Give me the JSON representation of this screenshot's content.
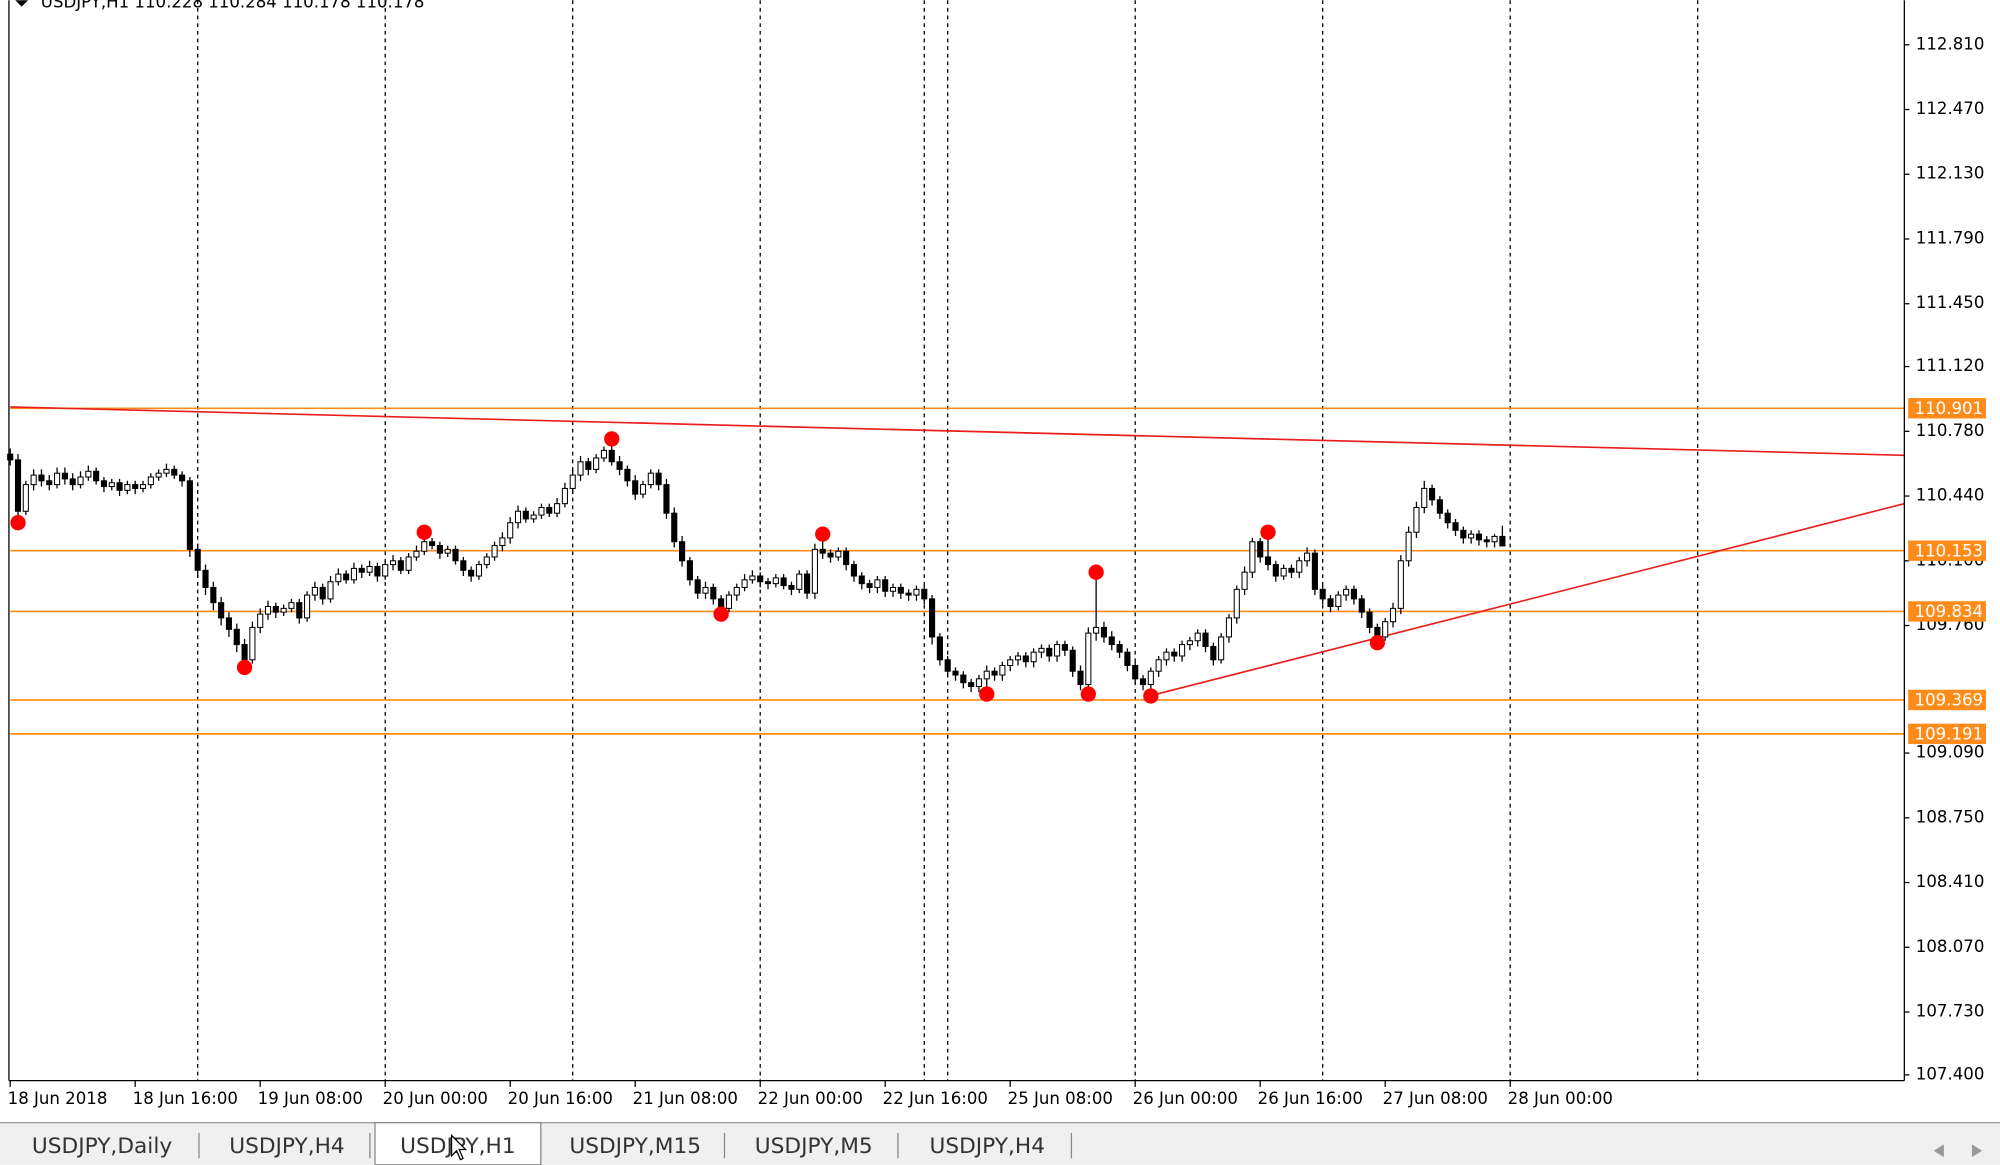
{
  "ui": {
    "header": "USDJPY,H1  110.228 110.284 110.178 110.178",
    "tabs": [
      "USDJPY,Daily",
      "USDJPY,H4",
      "USDJPY,H1",
      "USDJPY,M15",
      "USDJPY,M5",
      "USDJPY,H4"
    ],
    "active_tab": 2
  },
  "chart_data": {
    "type": "candlestick",
    "xlim": [
      0,
      242.45
    ],
    "ylim": [
      107.37,
      113.044
    ],
    "xticks": [
      {
        "value": 0,
        "label": "18 Jun 2018"
      },
      {
        "value": 16,
        "label": "18 Jun 16:00"
      },
      {
        "value": 32,
        "label": "19 Jun 08:00"
      },
      {
        "value": 48,
        "label": "20 Jun 00:00"
      },
      {
        "value": 64,
        "label": "20 Jun 16:00"
      },
      {
        "value": 80,
        "label": "21 Jun 08:00"
      },
      {
        "value": 96,
        "label": "22 Jun 00:00"
      },
      {
        "value": 112,
        "label": "22 Jun 16:00"
      },
      {
        "value": 128,
        "label": "25 Jun 08:00"
      },
      {
        "value": 144,
        "label": "26 Jun 00:00"
      },
      {
        "value": 160,
        "label": "26 Jun 16:00"
      },
      {
        "value": 176,
        "label": "27 Jun 08:00"
      },
      {
        "value": 192,
        "label": "28 Jun 00:00"
      }
    ],
    "yticks": [
      112.81,
      112.47,
      112.13,
      111.79,
      111.45,
      111.12,
      110.78,
      110.44,
      110.1,
      109.76,
      109.09,
      108.75,
      108.41,
      108.07,
      107.73,
      107.4
    ],
    "ytick_labels": [
      "112.810",
      "112.470",
      "112.130",
      "111.790",
      "111.450",
      "111.120",
      "110.780",
      "110.440",
      "110.100",
      "109.760",
      "109.090",
      "108.750",
      "108.410",
      "108.070",
      "107.730",
      "107.400"
    ],
    "separators": [
      24,
      48,
      72,
      96,
      117,
      120,
      144,
      168,
      192,
      216
    ],
    "levels": [
      110.901,
      110.153,
      109.834,
      109.369,
      109.191
    ],
    "level_color": "#ff8c1a",
    "trendlines": [
      {
        "x": [
          0,
          242.45
        ],
        "y": [
          110.908,
          110.654
        ]
      },
      {
        "x": [
          146.4,
          242.45
        ],
        "y": [
          109.396,
          110.4
        ]
      }
    ],
    "trend_color": "#e8201c",
    "fractals": [
      {
        "x": 1,
        "y": 110.3
      },
      {
        "x": 30,
        "y": 109.54
      },
      {
        "x": 53,
        "y": 110.25
      },
      {
        "x": 77,
        "y": 110.74
      },
      {
        "x": 91,
        "y": 109.82
      },
      {
        "x": 104,
        "y": 110.24
      },
      {
        "x": 125,
        "y": 109.4
      },
      {
        "x": 138,
        "y": 109.4
      },
      {
        "x": 139,
        "y": 110.04
      },
      {
        "x": 146,
        "y": 109.39
      },
      {
        "x": 161,
        "y": 110.25
      },
      {
        "x": 175,
        "y": 109.67
      }
    ],
    "fractal_color": "#ff0000",
    "open": [
      110.66,
      110.63,
      110.36,
      110.5,
      110.55,
      110.52,
      110.5,
      110.56,
      110.53,
      110.5,
      110.54,
      110.57,
      110.52,
      110.49,
      110.51,
      110.47,
      110.5,
      110.48,
      110.5,
      110.54,
      110.56,
      110.58,
      110.55,
      110.52,
      110.16,
      110.05,
      109.96,
      109.88,
      109.8,
      109.74,
      109.66,
      109.58,
      109.75,
      109.82,
      109.86,
      109.83,
      109.85,
      109.88,
      109.8,
      109.92,
      109.96,
      109.9,
      109.99,
      110.03,
      110.0,
      110.06,
      110.04,
      110.07,
      110.02,
      110.08,
      110.1,
      110.05,
      110.12,
      110.15,
      110.2,
      110.18,
      110.14,
      110.16,
      110.1,
      110.05,
      110.02,
      110.08,
      110.12,
      110.18,
      110.22,
      110.3,
      110.36,
      110.32,
      110.34,
      110.38,
      110.35,
      110.4,
      110.48,
      110.55,
      110.62,
      110.58,
      110.64,
      110.68,
      110.62,
      110.58,
      110.52,
      110.45,
      110.5,
      110.56,
      110.5,
      110.35,
      110.2,
      110.1,
      110.0,
      109.93,
      109.96,
      109.9,
      109.85,
      109.92,
      109.96,
      110.0,
      110.02,
      109.99,
      109.98,
      110.01,
      109.97,
      109.95,
      110.03,
      109.93,
      110.16,
      110.14,
      110.12,
      110.15,
      110.08,
      110.02,
      109.98,
      109.96,
      110.0,
      109.94,
      109.96,
      109.93,
      109.92,
      109.95,
      109.9,
      109.7,
      109.58,
      109.52,
      109.5,
      109.46,
      109.44,
      109.48,
      109.52,
      109.5,
      109.55,
      109.58,
      109.6,
      109.57,
      109.62,
      109.64,
      109.6,
      109.66,
      109.63,
      109.52,
      109.45,
      109.72,
      109.75,
      109.7,
      109.66,
      109.62,
      109.55,
      109.48,
      109.45,
      109.52,
      109.58,
      109.62,
      109.6,
      109.66,
      109.68,
      109.72,
      109.65,
      109.58,
      109.7,
      109.8,
      109.95,
      110.04,
      110.2,
      110.12,
      110.08,
      110.02,
      110.06,
      110.04,
      110.1,
      110.14,
      109.95,
      109.9,
      109.86,
      109.92,
      109.95,
      109.9,
      109.83,
      109.75,
      109.7,
      109.78,
      109.85,
      110.1,
      110.25,
      110.38,
      110.48,
      110.42,
      110.35,
      110.3,
      110.26,
      110.22,
      110.24,
      110.21,
      110.2,
      110.228
    ],
    "high": [
      110.69,
      110.66,
      110.52,
      110.58,
      110.58,
      110.55,
      110.59,
      110.59,
      110.56,
      110.57,
      110.6,
      110.59,
      110.54,
      110.53,
      110.53,
      110.52,
      110.52,
      110.52,
      110.56,
      110.58,
      110.61,
      110.6,
      110.57,
      110.54,
      110.19,
      110.08,
      109.99,
      109.91,
      109.83,
      109.77,
      109.69,
      109.78,
      109.85,
      109.89,
      109.88,
      109.87,
      109.9,
      109.9,
      109.94,
      109.99,
      109.98,
      110.02,
      110.06,
      110.05,
      110.09,
      110.08,
      110.1,
      110.09,
      110.1,
      110.13,
      110.12,
      110.14,
      110.18,
      110.25,
      110.22,
      110.2,
      110.18,
      110.18,
      110.12,
      110.07,
      110.1,
      110.14,
      110.2,
      110.25,
      110.33,
      110.39,
      110.38,
      110.36,
      110.4,
      110.4,
      110.43,
      110.51,
      110.58,
      110.65,
      110.64,
      110.66,
      110.7,
      110.74,
      110.65,
      110.6,
      110.55,
      110.52,
      110.58,
      110.58,
      110.53,
      110.38,
      110.23,
      110.12,
      110.02,
      109.99,
      109.98,
      109.92,
      109.94,
      109.98,
      110.03,
      110.05,
      110.04,
      110.01,
      110.03,
      110.03,
      109.99,
      110.05,
      110.05,
      110.19,
      110.24,
      110.16,
      110.17,
      110.17,
      110.1,
      110.04,
      110.0,
      110.02,
      110.02,
      109.98,
      109.98,
      109.95,
      109.97,
      109.97,
      109.92,
      109.72,
      109.6,
      109.54,
      109.52,
      109.48,
      109.5,
      109.55,
      109.54,
      109.57,
      109.6,
      109.62,
      109.62,
      109.64,
      109.66,
      109.66,
      109.68,
      109.68,
      109.65,
      109.55,
      109.75,
      110.04,
      109.78,
      109.73,
      109.68,
      109.64,
      109.57,
      109.5,
      109.54,
      109.6,
      109.64,
      109.64,
      109.68,
      109.7,
      109.74,
      109.74,
      109.67,
      109.72,
      109.82,
      109.97,
      110.07,
      110.22,
      110.22,
      110.25,
      110.1,
      110.08,
      110.08,
      110.12,
      110.17,
      110.16,
      109.97,
      109.92,
      109.94,
      109.97,
      109.97,
      109.92,
      109.85,
      109.77,
      109.8,
      109.88,
      110.13,
      110.28,
      110.41,
      110.52,
      110.5,
      110.44,
      110.37,
      110.32,
      110.28,
      110.26,
      110.26,
      110.23,
      110.24,
      110.284
    ],
    "low": [
      110.6,
      110.3,
      110.34,
      110.47,
      110.49,
      110.47,
      110.48,
      110.5,
      110.47,
      110.48,
      110.52,
      110.5,
      110.46,
      110.47,
      110.44,
      110.45,
      110.45,
      110.46,
      110.48,
      110.52,
      110.54,
      110.53,
      110.49,
      110.12,
      110.01,
      109.92,
      109.84,
      109.76,
      109.7,
      109.62,
      109.54,
      109.56,
      109.72,
      109.79,
      109.8,
      109.81,
      109.83,
      109.77,
      109.78,
      109.89,
      109.87,
      109.88,
      109.97,
      109.98,
      109.98,
      110.01,
      110.02,
      109.99,
      110.0,
      110.05,
      110.03,
      110.03,
      110.1,
      110.13,
      110.16,
      110.11,
      110.12,
      110.08,
      110.02,
      109.99,
      110.0,
      110.06,
      110.1,
      110.15,
      110.19,
      110.27,
      110.3,
      110.3,
      110.32,
      110.33,
      110.33,
      110.38,
      110.45,
      110.52,
      110.55,
      110.56,
      110.62,
      110.6,
      110.55,
      110.49,
      110.42,
      110.43,
      110.48,
      110.47,
      110.32,
      110.17,
      110.07,
      109.97,
      109.9,
      109.9,
      109.87,
      109.82,
      109.83,
      109.89,
      109.94,
      109.98,
      109.96,
      109.95,
      109.96,
      109.95,
      109.92,
      109.93,
      109.9,
      109.9,
      110.11,
      110.09,
      110.1,
      110.05,
      109.99,
      109.95,
      109.93,
      109.93,
      109.91,
      109.91,
      109.9,
      109.89,
      109.89,
      109.87,
      109.66,
      109.55,
      109.49,
      109.47,
      109.43,
      109.41,
      109.41,
      109.4,
      109.47,
      109.47,
      109.52,
      109.55,
      109.54,
      109.54,
      109.59,
      109.57,
      109.57,
      109.6,
      109.49,
      109.42,
      109.4,
      109.68,
      109.67,
      109.63,
      109.59,
      109.52,
      109.45,
      109.42,
      109.39,
      109.49,
      109.55,
      109.57,
      109.57,
      109.63,
      109.65,
      109.62,
      109.55,
      109.56,
      109.67,
      109.77,
      109.92,
      110.01,
      110.09,
      110.05,
      109.99,
      110.0,
      110.01,
      110.01,
      110.07,
      109.92,
      109.87,
      109.83,
      109.84,
      109.89,
      109.87,
      109.8,
      109.72,
      109.67,
      109.68,
      109.75,
      109.82,
      110.07,
      110.22,
      110.35,
      110.39,
      110.32,
      110.27,
      110.23,
      110.19,
      110.19,
      110.18,
      110.17,
      110.17,
      110.178
    ],
    "close": [
      110.63,
      110.36,
      110.5,
      110.55,
      110.52,
      110.5,
      110.56,
      110.53,
      110.5,
      110.54,
      110.57,
      110.52,
      110.49,
      110.51,
      110.47,
      110.5,
      110.48,
      110.5,
      110.54,
      110.56,
      110.58,
      110.55,
      110.52,
      110.16,
      110.05,
      109.96,
      109.88,
      109.8,
      109.74,
      109.66,
      109.58,
      109.75,
      109.82,
      109.86,
      109.83,
      109.85,
      109.88,
      109.8,
      109.92,
      109.96,
      109.9,
      109.99,
      110.03,
      110.0,
      110.06,
      110.04,
      110.07,
      110.02,
      110.08,
      110.1,
      110.05,
      110.12,
      110.15,
      110.2,
      110.18,
      110.14,
      110.16,
      110.1,
      110.05,
      110.02,
      110.08,
      110.12,
      110.18,
      110.22,
      110.3,
      110.36,
      110.32,
      110.34,
      110.38,
      110.35,
      110.4,
      110.48,
      110.55,
      110.62,
      110.58,
      110.64,
      110.68,
      110.62,
      110.58,
      110.52,
      110.45,
      110.5,
      110.56,
      110.5,
      110.35,
      110.2,
      110.1,
      110.0,
      109.93,
      109.96,
      109.9,
      109.85,
      109.92,
      109.96,
      110.0,
      110.02,
      109.99,
      109.98,
      110.01,
      109.97,
      109.95,
      110.03,
      109.93,
      110.16,
      110.14,
      110.12,
      110.15,
      110.08,
      110.02,
      109.98,
      109.96,
      110.0,
      109.94,
      109.96,
      109.93,
      109.92,
      109.95,
      109.9,
      109.7,
      109.58,
      109.52,
      109.5,
      109.46,
      109.44,
      109.48,
      109.52,
      109.5,
      109.55,
      109.58,
      109.6,
      109.57,
      109.62,
      109.64,
      109.6,
      109.66,
      109.63,
      109.52,
      109.45,
      109.72,
      109.75,
      109.7,
      109.66,
      109.62,
      109.55,
      109.48,
      109.45,
      109.52,
      109.58,
      109.62,
      109.6,
      109.66,
      109.68,
      109.72,
      109.65,
      109.58,
      109.7,
      109.8,
      109.95,
      110.04,
      110.2,
      110.12,
      110.08,
      110.02,
      110.06,
      110.04,
      110.1,
      110.14,
      109.95,
      109.9,
      109.86,
      109.92,
      109.95,
      109.9,
      109.83,
      109.75,
      109.7,
      109.78,
      109.85,
      110.1,
      110.25,
      110.38,
      110.48,
      110.42,
      110.35,
      110.3,
      110.26,
      110.22,
      110.24,
      110.21,
      110.2,
      110.228,
      110.178
    ]
  }
}
